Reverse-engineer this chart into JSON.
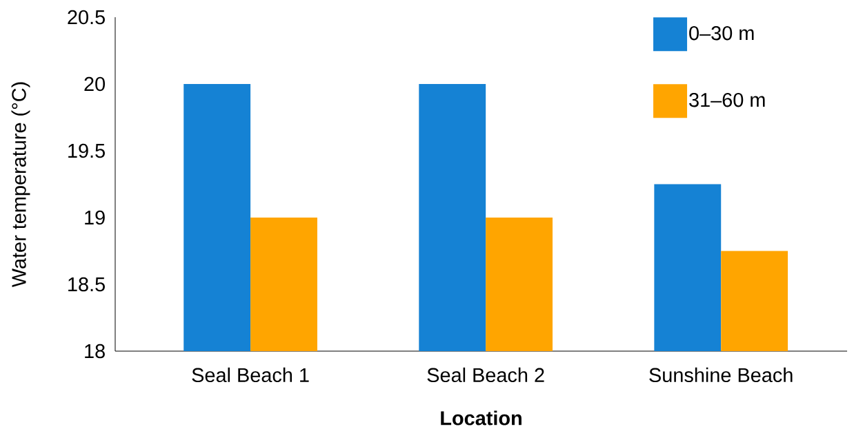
{
  "chart_data": {
    "type": "bar",
    "xlabel": "Location",
    "ylabel": "Water temperature (°C)",
    "categories": [
      "Seal Beach 1",
      "Seal Beach 2",
      "Sunshine Beach"
    ],
    "series": [
      {
        "name": "0–30 m",
        "color": "#1582d4",
        "values": [
          20,
          20,
          19.25
        ]
      },
      {
        "name": "31–60 m",
        "color": "#ffa500",
        "values": [
          19,
          19,
          18.75
        ]
      }
    ],
    "ylim": [
      18,
      20.5
    ],
    "yticks": [
      18,
      18.5,
      19,
      19.5,
      20,
      20.5
    ],
    "legend": "top right"
  }
}
